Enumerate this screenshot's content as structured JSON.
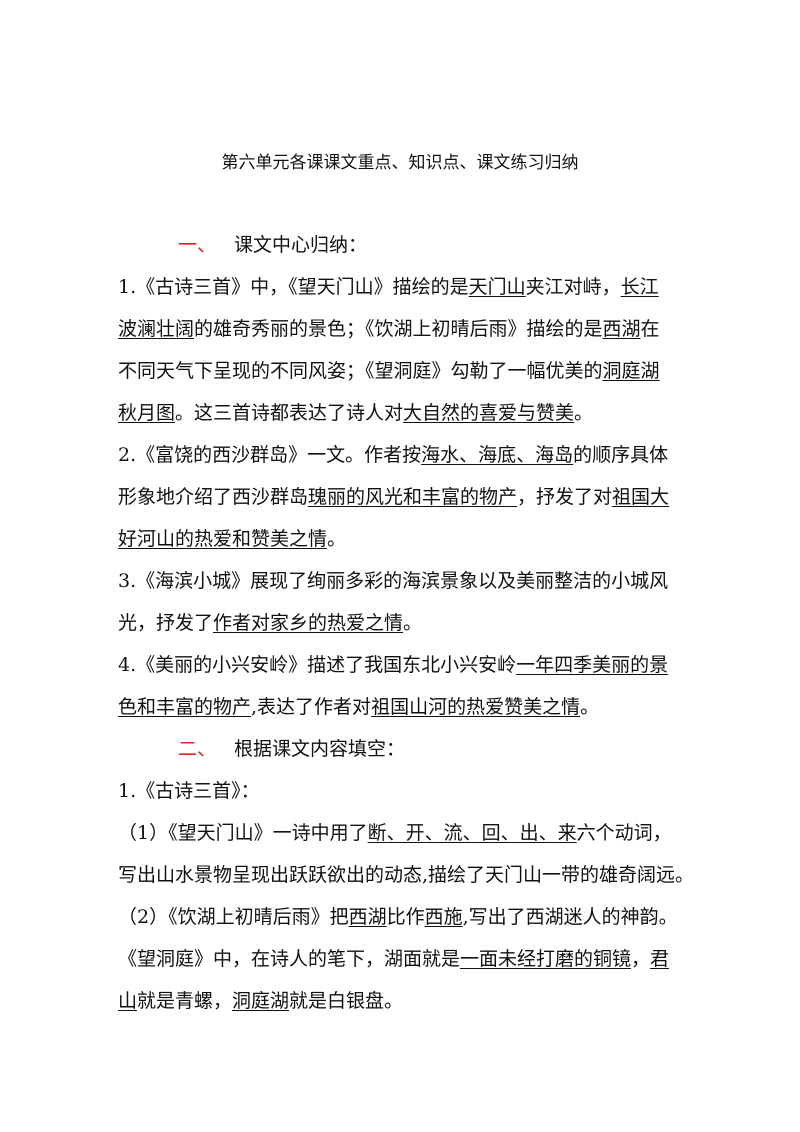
{
  "title": "第六单元各课课文重点、知识点、课文练习归纳",
  "section1": {
    "num": "一、",
    "label": "课文中心归纳："
  },
  "section2": {
    "num": "二、",
    "label": "根据课文内容填空："
  },
  "colors": {
    "section_number": "#e0202a",
    "text": "#111111"
  },
  "lines1": [
    [
      {
        "t": "1.《古诗三首》中，《望天门山》描绘的是"
      },
      {
        "t": "天门山",
        "u": true
      },
      {
        "t": "夹江对峙，"
      },
      {
        "t": "长江",
        "u": true
      }
    ],
    [
      {
        "t": "波澜壮阔",
        "u": true
      },
      {
        "t": "的雄奇秀丽的景色；《饮湖上初晴后雨》描绘的是"
      },
      {
        "t": "西湖",
        "u": true
      },
      {
        "t": "在"
      }
    ],
    [
      {
        "t": "不同天气下呈现的不同风姿；《望洞庭》勾勒了一幅优美的"
      },
      {
        "t": "洞庭湖",
        "u": true
      }
    ],
    [
      {
        "t": "秋月图",
        "u": true
      },
      {
        "t": "。这三首诗都表达了诗人对"
      },
      {
        "t": "大自然的喜爱与赞美",
        "u": true
      },
      {
        "t": "。"
      }
    ],
    [
      {
        "t": "2.《富饶的西沙群岛》一文。作者按"
      },
      {
        "t": "海水、海底、海岛",
        "u": true
      },
      {
        "t": "的顺序具体"
      }
    ],
    [
      {
        "t": "形象地介绍了西沙群岛"
      },
      {
        "t": "瑰丽的风光和丰富的物产",
        "u": true
      },
      {
        "t": "，抒发了对"
      },
      {
        "t": "祖国大",
        "u": true
      }
    ],
    [
      {
        "t": "好河山的热爱和赞美之情",
        "u": true
      },
      {
        "t": "。"
      }
    ],
    [
      {
        "t": "3.《海滨小城》展现了绚丽多彩的海滨景象以及美丽整洁的小城风"
      }
    ],
    [
      {
        "t": "光，抒发了"
      },
      {
        "t": "作者对家乡的热爱之情",
        "u": true
      },
      {
        "t": "。"
      }
    ],
    [
      {
        "t": "4.《美丽的小兴安岭》描述了我国东北小兴安岭"
      },
      {
        "t": "一年四季美丽的景",
        "u": true
      }
    ],
    [
      {
        "t": "色和丰富的物产",
        "u": true
      },
      {
        "t": ",表达了作者对"
      },
      {
        "t": "祖国山河的热爱赞美之情",
        "u": true
      },
      {
        "t": "。"
      }
    ]
  ],
  "lines2": [
    [
      {
        "t": "1.《古诗三首》："
      }
    ],
    [
      {
        "t": "（1）《望天门山》一诗中用了"
      },
      {
        "t": "断、开、流、回、出、来",
        "u": true
      },
      {
        "t": "六个动词，"
      }
    ],
    [
      {
        "t": "写出山水景物呈现出跃跃欲出的动态,描绘了天门山一带的雄奇阔远。"
      }
    ],
    [
      {
        "t": "（2）《饮湖上初晴后雨》把"
      },
      {
        "t": "西湖",
        "u": true
      },
      {
        "t": "比作"
      },
      {
        "t": "西施",
        "u": true
      },
      {
        "t": ",写出了西湖迷人的神韵。"
      }
    ],
    [
      {
        "t": "《望洞庭》中，在诗人的笔下，湖面就是"
      },
      {
        "t": "一面未经打磨的铜镜",
        "u": true
      },
      {
        "t": "，"
      },
      {
        "t": "君",
        "u": true
      }
    ],
    [
      {
        "t": "山",
        "u": true
      },
      {
        "t": "就是青螺，"
      },
      {
        "t": "洞庭湖",
        "u": true
      },
      {
        "t": "就是白银盘。"
      }
    ]
  ]
}
